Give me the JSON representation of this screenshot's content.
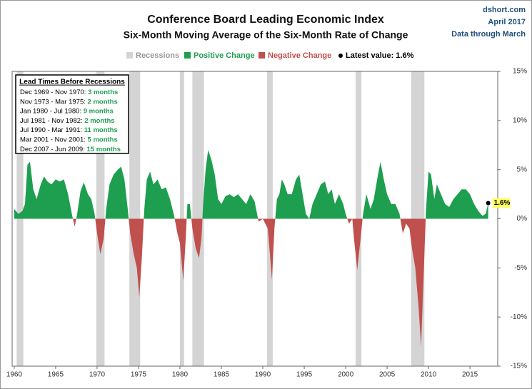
{
  "chart_data": {
    "type": "area",
    "title": "Conference Board Leading Economic Index",
    "subtitle": "Six-Month  Moving Average of the Six-Month  Rate of Change",
    "source": "dshort.com",
    "date": "April 2017",
    "note": "Data through March",
    "legend": {
      "recessions": "Recessions",
      "positive": "Positive Change",
      "negative": "Negative Change",
      "latest": "Latest value: 1.6%"
    },
    "positive_color": "#1e9e4f",
    "negative_color": "#c0504d",
    "recession_color": "#d4d4d4",
    "latest_label": "1.6%",
    "xlim": [
      1959.75,
      2018.35
    ],
    "ylim": [
      -15,
      15
    ],
    "xticks": [
      1960,
      1965,
      1970,
      1975,
      1980,
      1985,
      1990,
      1995,
      2000,
      2005,
      2010,
      2015
    ],
    "yticks": [
      {
        "value": 15,
        "label": "15%"
      },
      {
        "value": 10,
        "label": "10%"
      },
      {
        "value": 5,
        "label": "5%"
      },
      {
        "value": 0,
        "label": "0%"
      },
      {
        "value": -5,
        "label": "-5%"
      },
      {
        "value": -10,
        "label": "-10%"
      },
      {
        "value": -15,
        "label": "-15%"
      }
    ],
    "recessions": [
      [
        1960.3,
        1961.1
      ],
      [
        1969.9,
        1970.9
      ],
      [
        1973.9,
        1975.2
      ],
      [
        1980.0,
        1980.5
      ],
      [
        1981.5,
        1982.9
      ],
      [
        1990.5,
        1991.2
      ],
      [
        2001.2,
        2001.9
      ],
      [
        2007.9,
        2009.5
      ]
    ],
    "x": [
      1960.0,
      1960.5,
      1961.0,
      1961.3,
      1961.6,
      1961.9,
      1962.3,
      1962.7,
      1963.2,
      1963.6,
      1964.0,
      1964.5,
      1965.0,
      1965.5,
      1966.0,
      1966.5,
      1967.0,
      1967.3,
      1967.6,
      1968.0,
      1968.4,
      1968.9,
      1969.3,
      1969.7,
      1970.0,
      1970.4,
      1970.8,
      1971.1,
      1971.5,
      1972.0,
      1972.5,
      1972.9,
      1973.3,
      1973.7,
      1974.0,
      1974.4,
      1974.8,
      1975.1,
      1975.4,
      1975.7,
      1976.0,
      1976.4,
      1976.8,
      1977.3,
      1977.8,
      1978.3,
      1978.8,
      1979.3,
      1979.7,
      1980.0,
      1980.4,
      1980.7,
      1980.9,
      1981.2,
      1981.5,
      1981.9,
      1982.3,
      1982.6,
      1982.8,
      1983.1,
      1983.4,
      1983.8,
      1984.2,
      1984.6,
      1985.0,
      1985.5,
      1986.0,
      1986.5,
      1987.0,
      1987.5,
      1988.0,
      1988.5,
      1989.0,
      1989.5,
      1990.0,
      1990.3,
      1990.6,
      1990.9,
      1991.1,
      1991.4,
      1991.7,
      1992.0,
      1992.3,
      1992.6,
      1993.0,
      1993.5,
      1994.0,
      1994.4,
      1994.8,
      1995.2,
      1995.6,
      1996.0,
      1996.5,
      1997.0,
      1997.5,
      1997.9,
      1998.3,
      1998.7,
      1999.2,
      1999.7,
      2000.0,
      2000.4,
      2000.8,
      2001.0,
      2001.4,
      2001.8,
      2002.1,
      2002.5,
      2003.0,
      2003.4,
      2003.8,
      2004.2,
      2004.6,
      2005.0,
      2005.5,
      2006.0,
      2006.5,
      2006.9,
      2007.3,
      2007.7,
      2008.0,
      2008.4,
      2008.8,
      2009.1,
      2009.4,
      2009.7,
      2010.0,
      2010.3,
      2010.7,
      2011.0,
      2011.5,
      2012.0,
      2012.5,
      2013.0,
      2013.5,
      2014.0,
      2014.5,
      2015.0,
      2015.5,
      2016.0,
      2016.5,
      2016.9,
      2017.2
    ],
    "values": [
      1.0,
      0.5,
      0.8,
      1.5,
      5.5,
      5.8,
      3.0,
      2.0,
      3.5,
      4.3,
      3.8,
      3.5,
      4.0,
      3.8,
      4.0,
      2.5,
      0.3,
      -0.8,
      0.5,
      2.8,
      3.7,
      2.5,
      2.0,
      0.5,
      -1.5,
      -3.6,
      -2.0,
      1.0,
      3.5,
      4.5,
      5.0,
      5.3,
      4.0,
      1.0,
      -1.5,
      -3.5,
      -5.0,
      -8.0,
      -4.0,
      1.0,
      4.0,
      4.8,
      3.5,
      4.0,
      3.0,
      3.2,
      2.0,
      0.3,
      -1.5,
      -2.5,
      -6.3,
      -2.0,
      1.5,
      1.5,
      -1.0,
      -3.0,
      -4.0,
      -2.0,
      1.5,
      5.0,
      7.0,
      6.0,
      4.5,
      2.0,
      1.5,
      2.3,
      2.5,
      2.2,
      2.5,
      2.0,
      1.5,
      2.5,
      1.8,
      -0.3,
      0.0,
      -0.5,
      -1.0,
      -4.0,
      -6.2,
      -1.0,
      2.0,
      2.5,
      4.0,
      3.5,
      2.5,
      2.5,
      4.0,
      4.5,
      2.5,
      0.5,
      0.0,
      1.5,
      2.5,
      3.5,
      3.8,
      2.5,
      3.0,
      1.5,
      2.5,
      1.5,
      0.5,
      -0.5,
      0.0,
      -2.0,
      -5.2,
      -2.0,
      0.5,
      2.5,
      1.0,
      2.0,
      4.0,
      5.8,
      4.0,
      2.5,
      1.5,
      1.5,
      0.5,
      -1.5,
      -0.5,
      -1.0,
      -3.0,
      -5.0,
      -9.0,
      -13.0,
      -6.0,
      1.0,
      4.8,
      4.5,
      2.0,
      3.5,
      2.5,
      1.5,
      1.2,
      2.0,
      2.5,
      3.0,
      3.0,
      2.5,
      1.5,
      0.8,
      0.3,
      0.5,
      1.6
    ],
    "lead_times": {
      "title": "Lead Times Before Recessions",
      "rows": [
        {
          "period": "Dec 1969 - Nov 1970: ",
          "lead": "3 months"
        },
        {
          "period": "Nov 1973 - Mar 1975: ",
          "lead": "2 months"
        },
        {
          "period": "Jan 1980 - Jul 1980: ",
          "lead": "9 months"
        },
        {
          "period": "Jul 1981 - Nov 1982: ",
          "lead": "2 months"
        },
        {
          "period": "Jul 1990 - Mar 1991: ",
          "lead": "11 months"
        },
        {
          "period": "Mar 2001 - Nov 2001: ",
          "lead": "5 months"
        },
        {
          "period": "Dec 2007 - Jun 2009: ",
          "lead": "15 months"
        }
      ]
    }
  }
}
